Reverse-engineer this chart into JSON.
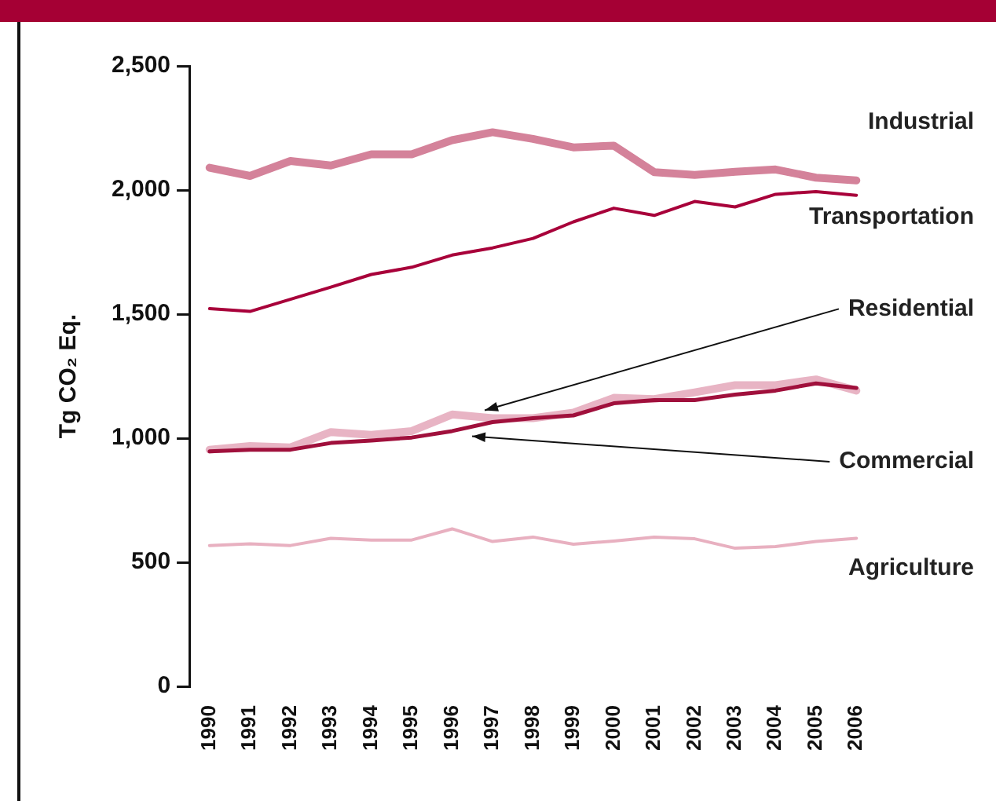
{
  "chart_data": {
    "type": "line",
    "ylabel": "Tg CO₂ Eq.",
    "categories": [
      "1990",
      "1991",
      "1992",
      "1993",
      "1994",
      "1995",
      "1996",
      "1997",
      "1998",
      "1999",
      "2000",
      "2001",
      "2002",
      "2003",
      "2004",
      "2005",
      "2006"
    ],
    "series": [
      {
        "name": "Industrial",
        "color": "#d4829a",
        "values": [
          2090,
          2057,
          2117,
          2099,
          2144,
          2144,
          2201,
          2233,
          2206,
          2172,
          2179,
          2072,
          2061,
          2074,
          2083,
          2050,
          2039
        ]
      },
      {
        "name": "Transportation",
        "color": "#a8003a",
        "values": [
          1522,
          1511,
          1560,
          1609,
          1660,
          1689,
          1738,
          1767,
          1805,
          1872,
          1927,
          1898,
          1954,
          1932,
          1983,
          1994,
          1979
        ]
      },
      {
        "name": "Residential",
        "color": "#e8b4c4",
        "values": [
          954,
          969,
          963,
          1025,
          1014,
          1029,
          1096,
          1081,
          1081,
          1103,
          1163,
          1158,
          1185,
          1214,
          1214,
          1237,
          1192
        ]
      },
      {
        "name": "Commercial",
        "color": "#a0103c",
        "values": [
          947,
          954,
          954,
          981,
          991,
          1003,
          1029,
          1065,
          1081,
          1092,
          1141,
          1154,
          1154,
          1176,
          1192,
          1221,
          1203
        ]
      },
      {
        "name": "Agriculture",
        "color": "#e8b0c0",
        "values": [
          568,
          575,
          568,
          597,
          590,
          590,
          635,
          584,
          602,
          573,
          586,
          602,
          595,
          557,
          564,
          584,
          597
        ]
      }
    ],
    "ylim": [
      0,
      2500
    ],
    "yticks": [
      0,
      {
        "value": 500,
        "label": "500"
      },
      {
        "value": 1000,
        "label": "1,000"
      },
      {
        "value": 1500,
        "label": "1,500"
      },
      {
        "value": 2000,
        "label": "2,000"
      },
      {
        "value": 2500,
        "label": "2,500"
      }
    ],
    "grid": false,
    "legend": false,
    "marker": "none",
    "line_style": "solid"
  }
}
